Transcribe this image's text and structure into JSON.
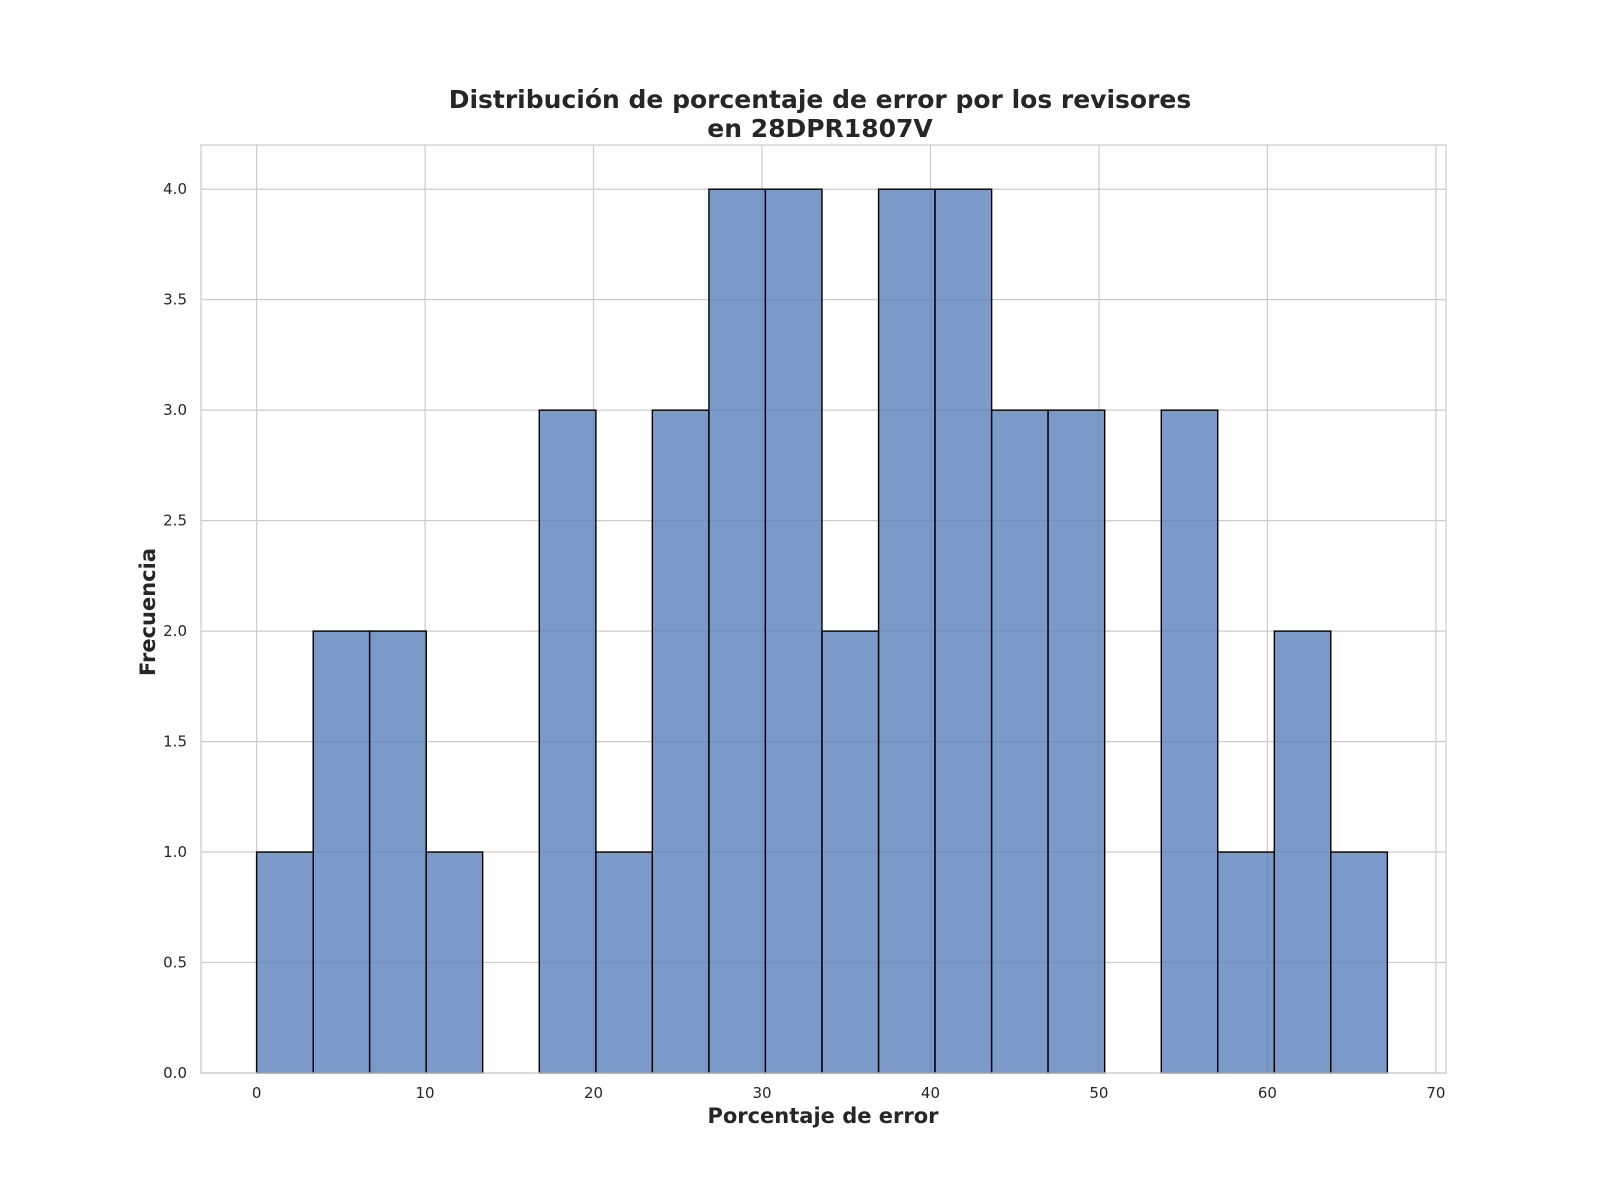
{
  "chart_data": {
    "type": "bar",
    "title_line1": "Distribución de porcentaje de error por los revisores",
    "title_line2": "en 28DPR1807V",
    "xlabel": "Porcentaje de error",
    "ylabel": "Frecuencia",
    "xlim": [
      -3.3,
      70.6
    ],
    "ylim": [
      0,
      4.2
    ],
    "grid": true,
    "x_ticks": [
      "0",
      "10",
      "20",
      "30",
      "40",
      "50",
      "60",
      "70"
    ],
    "x_tick_values": [
      0,
      10,
      20,
      30,
      40,
      50,
      60,
      70
    ],
    "y_ticks": [
      "0.0",
      "0.5",
      "1.0",
      "1.5",
      "2.0",
      "2.5",
      "3.0",
      "3.5",
      "4.0"
    ],
    "y_tick_values": [
      0,
      0.5,
      1.0,
      1.5,
      2.0,
      2.5,
      3.0,
      3.5,
      4.0
    ],
    "bin_edges": [
      0,
      3.36,
      6.71,
      10.07,
      13.42,
      16.78,
      20.14,
      23.49,
      26.85,
      30.2,
      33.56,
      36.92,
      40.27,
      43.63,
      46.98,
      50.34,
      53.7,
      57.05,
      60.41,
      63.76,
      67.12
    ],
    "values": [
      1,
      2,
      2,
      1,
      0,
      3,
      1,
      3,
      4,
      4,
      2,
      4,
      4,
      3,
      3,
      0,
      3,
      1,
      2,
      1
    ],
    "bar_color": "#5a7fbb",
    "edge_color": "#000000"
  }
}
